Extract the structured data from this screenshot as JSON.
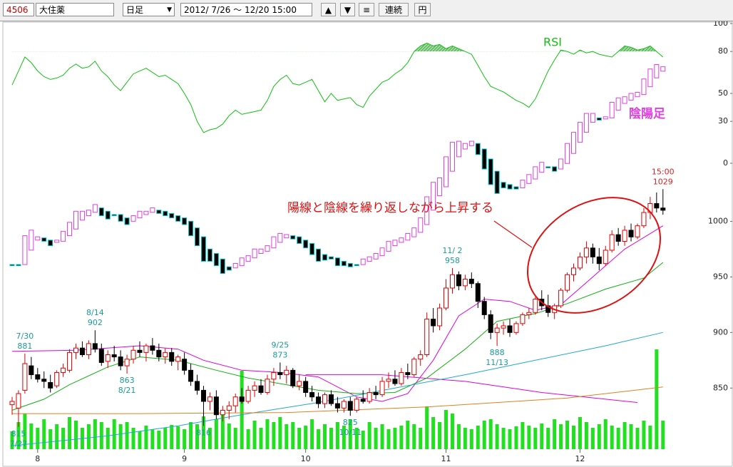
{
  "toolbar": {
    "code": "4506",
    "name": "大住薬",
    "period": "日足",
    "range": "2012/ 7/26 〜 12/20 15:00",
    "buttons": [
      "▲",
      "▼",
      "≡",
      "連続",
      "円"
    ]
  },
  "chart_data": {
    "type": "candlestick",
    "note": "陽線と陰線を繰り返しながら上昇する",
    "xlim": [
      -1.9,
      103.7
    ],
    "xticks": [
      {
        "value": 4,
        "label": "8"
      },
      {
        "value": 27,
        "label": "9"
      },
      {
        "value": 46,
        "label": "10"
      },
      {
        "value": 68,
        "label": "11"
      },
      {
        "value": 89,
        "label": "12"
      }
    ],
    "ylim": [
      795,
      1178
    ],
    "yticks": [
      850,
      900,
      950,
      1000
    ],
    "up_color": "#e00000",
    "down_color": "#000000",
    "ohlc": [
      [
        835,
        842,
        826,
        838
      ],
      [
        832,
        848,
        815,
        845
      ],
      [
        848,
        881,
        845,
        872
      ],
      [
        870,
        878,
        858,
        862
      ],
      [
        862,
        868,
        855,
        858
      ],
      [
        858,
        865,
        850,
        856
      ],
      [
        855,
        862,
        846,
        850
      ],
      [
        852,
        866,
        850,
        864
      ],
      [
        864,
        872,
        860,
        868
      ],
      [
        866,
        885,
        864,
        882
      ],
      [
        882,
        890,
        876,
        886
      ],
      [
        886,
        892,
        878,
        880
      ],
      [
        880,
        893,
        876,
        890
      ],
      [
        890,
        902,
        882,
        885
      ],
      [
        885,
        890,
        870,
        873
      ],
      [
        874,
        884,
        868,
        880
      ],
      [
        880,
        888,
        874,
        878
      ],
      [
        878,
        884,
        866,
        870
      ],
      [
        870,
        880,
        863,
        876
      ],
      [
        876,
        888,
        872,
        884
      ],
      [
        884,
        892,
        878,
        882
      ],
      [
        882,
        890,
        874,
        888
      ],
      [
        888,
        895,
        880,
        884
      ],
      [
        884,
        890,
        874,
        878
      ],
      [
        878,
        886,
        872,
        882
      ],
      [
        882,
        886,
        870,
        874
      ],
      [
        874,
        880,
        866,
        878
      ],
      [
        876,
        882,
        862,
        866
      ],
      [
        866,
        872,
        852,
        856
      ],
      [
        856,
        862,
        844,
        848
      ],
      [
        848,
        852,
        816,
        838
      ],
      [
        838,
        846,
        830,
        842
      ],
      [
        842,
        848,
        822,
        826
      ],
      [
        826,
        834,
        820,
        830
      ],
      [
        830,
        838,
        822,
        834
      ],
      [
        834,
        845,
        828,
        842
      ],
      [
        842,
        850,
        836,
        838
      ],
      [
        838,
        852,
        836,
        848
      ],
      [
        848,
        856,
        842,
        852
      ],
      [
        852,
        858,
        844,
        846
      ],
      [
        846,
        862,
        844,
        858
      ],
      [
        858,
        868,
        852,
        864
      ],
      [
        864,
        873,
        858,
        862
      ],
      [
        862,
        870,
        854,
        866
      ],
      [
        866,
        868,
        850,
        852
      ],
      [
        852,
        862,
        848,
        856
      ],
      [
        856,
        860,
        842,
        846
      ],
      [
        846,
        852,
        838,
        842
      ],
      [
        842,
        846,
        832,
        836
      ],
      [
        836,
        846,
        832,
        844
      ],
      [
        844,
        848,
        834,
        836
      ],
      [
        836,
        842,
        828,
        832
      ],
      [
        832,
        840,
        828,
        838
      ],
      [
        838,
        842,
        825,
        830
      ],
      [
        830,
        842,
        828,
        840
      ],
      [
        840,
        848,
        836,
        838
      ],
      [
        838,
        850,
        836,
        846
      ],
      [
        846,
        852,
        840,
        844
      ],
      [
        844,
        860,
        842,
        856
      ],
      [
        856,
        864,
        850,
        858
      ],
      [
        858,
        866,
        852,
        854
      ],
      [
        854,
        868,
        852,
        864
      ],
      [
        864,
        872,
        858,
        862
      ],
      [
        862,
        878,
        860,
        876
      ],
      [
        876,
        884,
        870,
        880
      ],
      [
        880,
        918,
        878,
        912
      ],
      [
        912,
        922,
        900,
        906
      ],
      [
        906,
        926,
        902,
        922
      ],
      [
        922,
        948,
        920,
        940
      ],
      [
        940,
        958,
        935,
        952
      ],
      [
        952,
        955,
        938,
        942
      ],
      [
        942,
        952,
        938,
        948
      ],
      [
        948,
        954,
        940,
        944
      ],
      [
        944,
        946,
        922,
        928
      ],
      [
        928,
        932,
        912,
        916
      ],
      [
        916,
        920,
        894,
        900
      ],
      [
        900,
        908,
        888,
        904
      ],
      [
        904,
        910,
        898,
        906
      ],
      [
        906,
        912,
        896,
        900
      ],
      [
        900,
        910,
        898,
        908
      ],
      [
        908,
        918,
        906,
        916
      ],
      [
        916,
        922,
        912,
        918
      ],
      [
        918,
        932,
        916,
        930
      ],
      [
        930,
        938,
        920,
        924
      ],
      [
        924,
        934,
        914,
        918
      ],
      [
        918,
        926,
        912,
        924
      ],
      [
        924,
        940,
        922,
        938
      ],
      [
        938,
        954,
        936,
        952
      ],
      [
        952,
        962,
        946,
        958
      ],
      [
        958,
        972,
        956,
        968
      ],
      [
        968,
        982,
        962,
        976
      ],
      [
        976,
        980,
        962,
        968
      ],
      [
        968,
        976,
        956,
        962
      ],
      [
        962,
        978,
        960,
        974
      ],
      [
        974,
        992,
        972,
        988
      ],
      [
        988,
        994,
        978,
        982
      ],
      [
        982,
        996,
        978,
        992
      ],
      [
        992,
        998,
        982,
        986
      ],
      [
        986,
        998,
        984,
        996
      ],
      [
        996,
        1012,
        994,
        1008
      ],
      [
        1008,
        1022,
        1002,
        1016
      ],
      [
        1016,
        1026,
        1008,
        1012
      ],
      [
        1012,
        1029,
        1006,
        1010
      ]
    ],
    "heikin_ashi": {
      "name": "陰陽足",
      "up_color": "#e040e0",
      "down_color": "#00c0c0",
      "values": [
        [
          836,
          835
        ],
        [
          836,
          835
        ],
        [
          836,
          862
        ],
        [
          849,
          867
        ],
        [
          858,
          861
        ],
        [
          860,
          857
        ],
        [
          858,
          853
        ],
        [
          856,
          858
        ],
        [
          857,
          866
        ],
        [
          862,
          874
        ],
        [
          868,
          884
        ],
        [
          876,
          884
        ],
        [
          880,
          885
        ],
        [
          883,
          890
        ],
        [
          887,
          880
        ],
        [
          884,
          877
        ],
        [
          881,
          880
        ],
        [
          881,
          875
        ],
        [
          878,
          872
        ],
        [
          875,
          880
        ],
        [
          878,
          884
        ],
        [
          881,
          884
        ],
        [
          883,
          887
        ],
        [
          885,
          882
        ],
        [
          884,
          880
        ],
        [
          882,
          878
        ],
        [
          880,
          875
        ],
        [
          878,
          872
        ],
        [
          875,
          862
        ],
        [
          869,
          853
        ],
        [
          861,
          839
        ],
        [
          850,
          839
        ],
        [
          846,
          835
        ],
        [
          841,
          828
        ],
        [
          834,
          831
        ],
        [
          833,
          837
        ],
        [
          835,
          842
        ],
        [
          839,
          844
        ],
        [
          842,
          850
        ],
        [
          846,
          850
        ],
        [
          848,
          853
        ],
        [
          851,
          861
        ],
        [
          856,
          864
        ],
        [
          860,
          863
        ],
        [
          862,
          859
        ],
        [
          861,
          855
        ],
        [
          858,
          851
        ],
        [
          855,
          845
        ],
        [
          850,
          839
        ],
        [
          845,
          840
        ],
        [
          843,
          841
        ],
        [
          842,
          835
        ],
        [
          839,
          835
        ],
        [
          837,
          834
        ],
        [
          836,
          835
        ],
        [
          836,
          841
        ],
        [
          839,
          843
        ],
        [
          841,
          846
        ],
        [
          844,
          851
        ],
        [
          848,
          857
        ],
        [
          853,
          858
        ],
        [
          856,
          860
        ],
        [
          858,
          864
        ],
        [
          861,
          869
        ],
        [
          865,
          878
        ],
        [
          872,
          897
        ],
        [
          885,
          910
        ],
        [
          898,
          914
        ],
        [
          906,
          933
        ],
        [
          920,
          946
        ],
        [
          933,
          947
        ],
        [
          940,
          945
        ],
        [
          943,
          947
        ],
        [
          945,
          935
        ],
        [
          940,
          922
        ],
        [
          931,
          908
        ],
        [
          920,
          900
        ],
        [
          910,
          905
        ],
        [
          908,
          904
        ],
        [
          906,
          904
        ],
        [
          905,
          912
        ],
        [
          909,
          917
        ],
        [
          913,
          924
        ],
        [
          919,
          928
        ],
        [
          924,
          923
        ],
        [
          924,
          920
        ],
        [
          922,
          931
        ],
        [
          927,
          945
        ],
        [
          936,
          955
        ],
        [
          946,
          964
        ],
        [
          955,
          972
        ],
        [
          964,
          972
        ],
        [
          968,
          966
        ],
        [
          967,
          969
        ],
        [
          968,
          982
        ],
        [
          975,
          986
        ],
        [
          981,
          987
        ],
        [
          984,
          990
        ],
        [
          987,
          991
        ],
        [
          989,
          1003
        ],
        [
          996,
          1012
        ],
        [
          1004,
          1016
        ],
        [
          1010,
          1014
        ]
      ]
    },
    "rsi": {
      "name": "RSI",
      "color": "#10c010",
      "ylim": [
        0,
        100
      ],
      "yticks": [
        0,
        30,
        50,
        80,
        100
      ],
      "values": [
        56,
        66,
        76,
        72,
        66,
        62,
        60,
        61,
        63,
        68,
        71,
        68,
        69,
        73,
        66,
        62,
        56,
        52,
        58,
        64,
        66,
        68,
        65,
        62,
        63,
        60,
        57,
        50,
        42,
        30,
        22,
        24,
        25,
        28,
        34,
        38,
        35,
        36,
        37,
        38,
        45,
        55,
        60,
        63,
        57,
        56,
        58,
        60,
        52,
        44,
        50,
        45,
        46,
        47,
        42,
        40,
        48,
        53,
        58,
        60,
        64,
        67,
        72,
        80,
        84,
        86,
        84,
        85,
        82,
        84,
        82,
        80,
        78,
        70,
        62,
        55,
        53,
        51,
        48,
        45,
        43,
        40,
        46,
        56,
        66,
        74,
        81,
        80,
        78,
        81,
        79,
        80,
        78,
        77,
        76,
        80,
        84,
        83,
        81,
        82,
        84,
        80,
        76
      ]
    },
    "moving_averages": [
      {
        "color": "#e000e0",
        "x": [
          0,
          10,
          20,
          26,
          30,
          36,
          42,
          48,
          54,
          58,
          62,
          66,
          70,
          74,
          78,
          82,
          86,
          90,
          96,
          102
        ],
        "values": [
          883,
          884,
          888,
          885,
          875,
          866,
          864,
          860,
          842,
          838,
          845,
          875,
          915,
          930,
          928,
          920,
          925,
          945,
          975,
          996
        ]
      },
      {
        "color": "#e000e0",
        "x": [
          46,
          58,
          71,
          83,
          98
        ],
        "values": [
          862,
          862,
          856,
          846,
          837
        ]
      },
      {
        "color": "#10b010",
        "x": [
          0,
          5,
          9,
          15,
          20,
          26,
          32,
          37,
          43,
          48,
          54,
          60,
          65,
          71,
          76,
          82,
          87,
          93,
          99,
          102
        ],
        "values": [
          830,
          840,
          853,
          869,
          878,
          875,
          866,
          859,
          853,
          848,
          845,
          846,
          859,
          885,
          910,
          917,
          926,
          939,
          949,
          963
        ]
      },
      {
        "color": "#20a8d0",
        "x": [
          0,
          15,
          26,
          37,
          48,
          60,
          71,
          82,
          93,
          102
        ],
        "values": [
          798,
          807,
          816,
          827,
          837,
          850,
          862,
          875,
          888,
          900
        ]
      },
      {
        "color": "#e08020",
        "x": [
          0,
          20,
          43,
          65,
          87,
          102
        ],
        "values": [
          827,
          827,
          828,
          833,
          841,
          851
        ]
      }
    ],
    "volume": {
      "color": "#20e020",
      "values": [
        250,
        380,
        500,
        360,
        300,
        420,
        280,
        350,
        300,
        450,
        400,
        300,
        350,
        420,
        380,
        300,
        420,
        350,
        380,
        300,
        250,
        330,
        280,
        260,
        300,
        340,
        320,
        280,
        380,
        350,
        460,
        300,
        420,
        500,
        360,
        300,
        1100,
        280,
        400,
        300,
        420,
        380,
        450,
        350,
        380,
        300,
        330,
        420,
        280,
        350,
        300,
        380,
        330,
        420,
        300,
        260,
        380,
        300,
        350,
        280,
        300,
        330,
        400,
        350,
        300,
        600,
        450,
        380,
        550,
        500,
        350,
        300,
        280,
        330,
        400,
        420,
        350,
        300,
        280,
        320,
        380,
        330,
        300,
        360,
        300,
        420,
        350,
        400,
        330,
        450,
        380,
        300,
        350,
        420,
        330,
        300,
        380,
        350,
        300,
        400,
        330,
        1400,
        400
      ]
    },
    "annotations": [
      {
        "x": 1,
        "value": 815,
        "date": "7/27",
        "color": "#1a9a9a"
      },
      {
        "x": 2,
        "value": 881,
        "date": "7/30",
        "color": "#1a9a9a"
      },
      {
        "x": 13,
        "value": 902,
        "date": "8/14",
        "color": "#1a9a9a"
      },
      {
        "x": 18,
        "value": 863,
        "date": "8/21",
        "color": "#1a9a9a"
      },
      {
        "x": 30,
        "value": 816,
        "color": "#1a9a9a"
      },
      {
        "x": 42,
        "value": 873,
        "date": "9/25",
        "color": "#1a9a9a"
      },
      {
        "x": 53,
        "value": 825,
        "date": "10/11",
        "color": "#1a9a9a"
      },
      {
        "x": 69,
        "value": 958,
        "date": "11/ 2",
        "color": "#1a9a9a"
      },
      {
        "x": 76,
        "value": 888,
        "date": "11/13",
        "color": "#1a9a9a"
      },
      {
        "x": 102,
        "value": 1029,
        "date": "15:00",
        "color": "#e02020"
      }
    ]
  }
}
